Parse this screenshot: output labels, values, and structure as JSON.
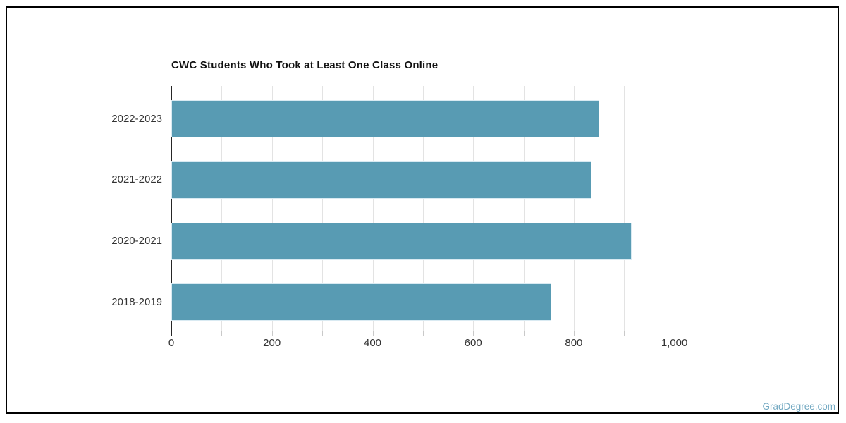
{
  "page": {
    "watermark": "GradDegree.com"
  },
  "chart_data": {
    "type": "bar",
    "orientation": "horizontal",
    "title": "CWC Students Who Took at Least One Class Online",
    "categories": [
      "2022-2023",
      "2021-2022",
      "2020-2021",
      "2018-2019"
    ],
    "values": [
      850,
      835,
      915,
      755
    ],
    "xlabel": "",
    "ylabel": "",
    "xlim": [
      0,
      1100
    ],
    "x_ticks": [
      {
        "value": 0,
        "label": "0"
      },
      {
        "value": 200,
        "label": "200"
      },
      {
        "value": 400,
        "label": "400"
      },
      {
        "value": 600,
        "label": "600"
      },
      {
        "value": 800,
        "label": "800"
      },
      {
        "value": 1000,
        "label": "1,000"
      }
    ],
    "gridline_values": [
      100,
      200,
      300,
      400,
      500,
      600,
      700,
      800,
      900,
      1000
    ],
    "grid": true,
    "legend": false,
    "colors": {
      "bar": "#589BB3",
      "bar_stroke": "#D9EAF2",
      "grid": "#E3E3E3",
      "tick": "#C9C9C9",
      "axis": "#262626",
      "label": "#333333",
      "title": "#111111",
      "watermark": "#73A9C2",
      "frame_border": "#000000",
      "background": "#FFFFFF"
    }
  }
}
